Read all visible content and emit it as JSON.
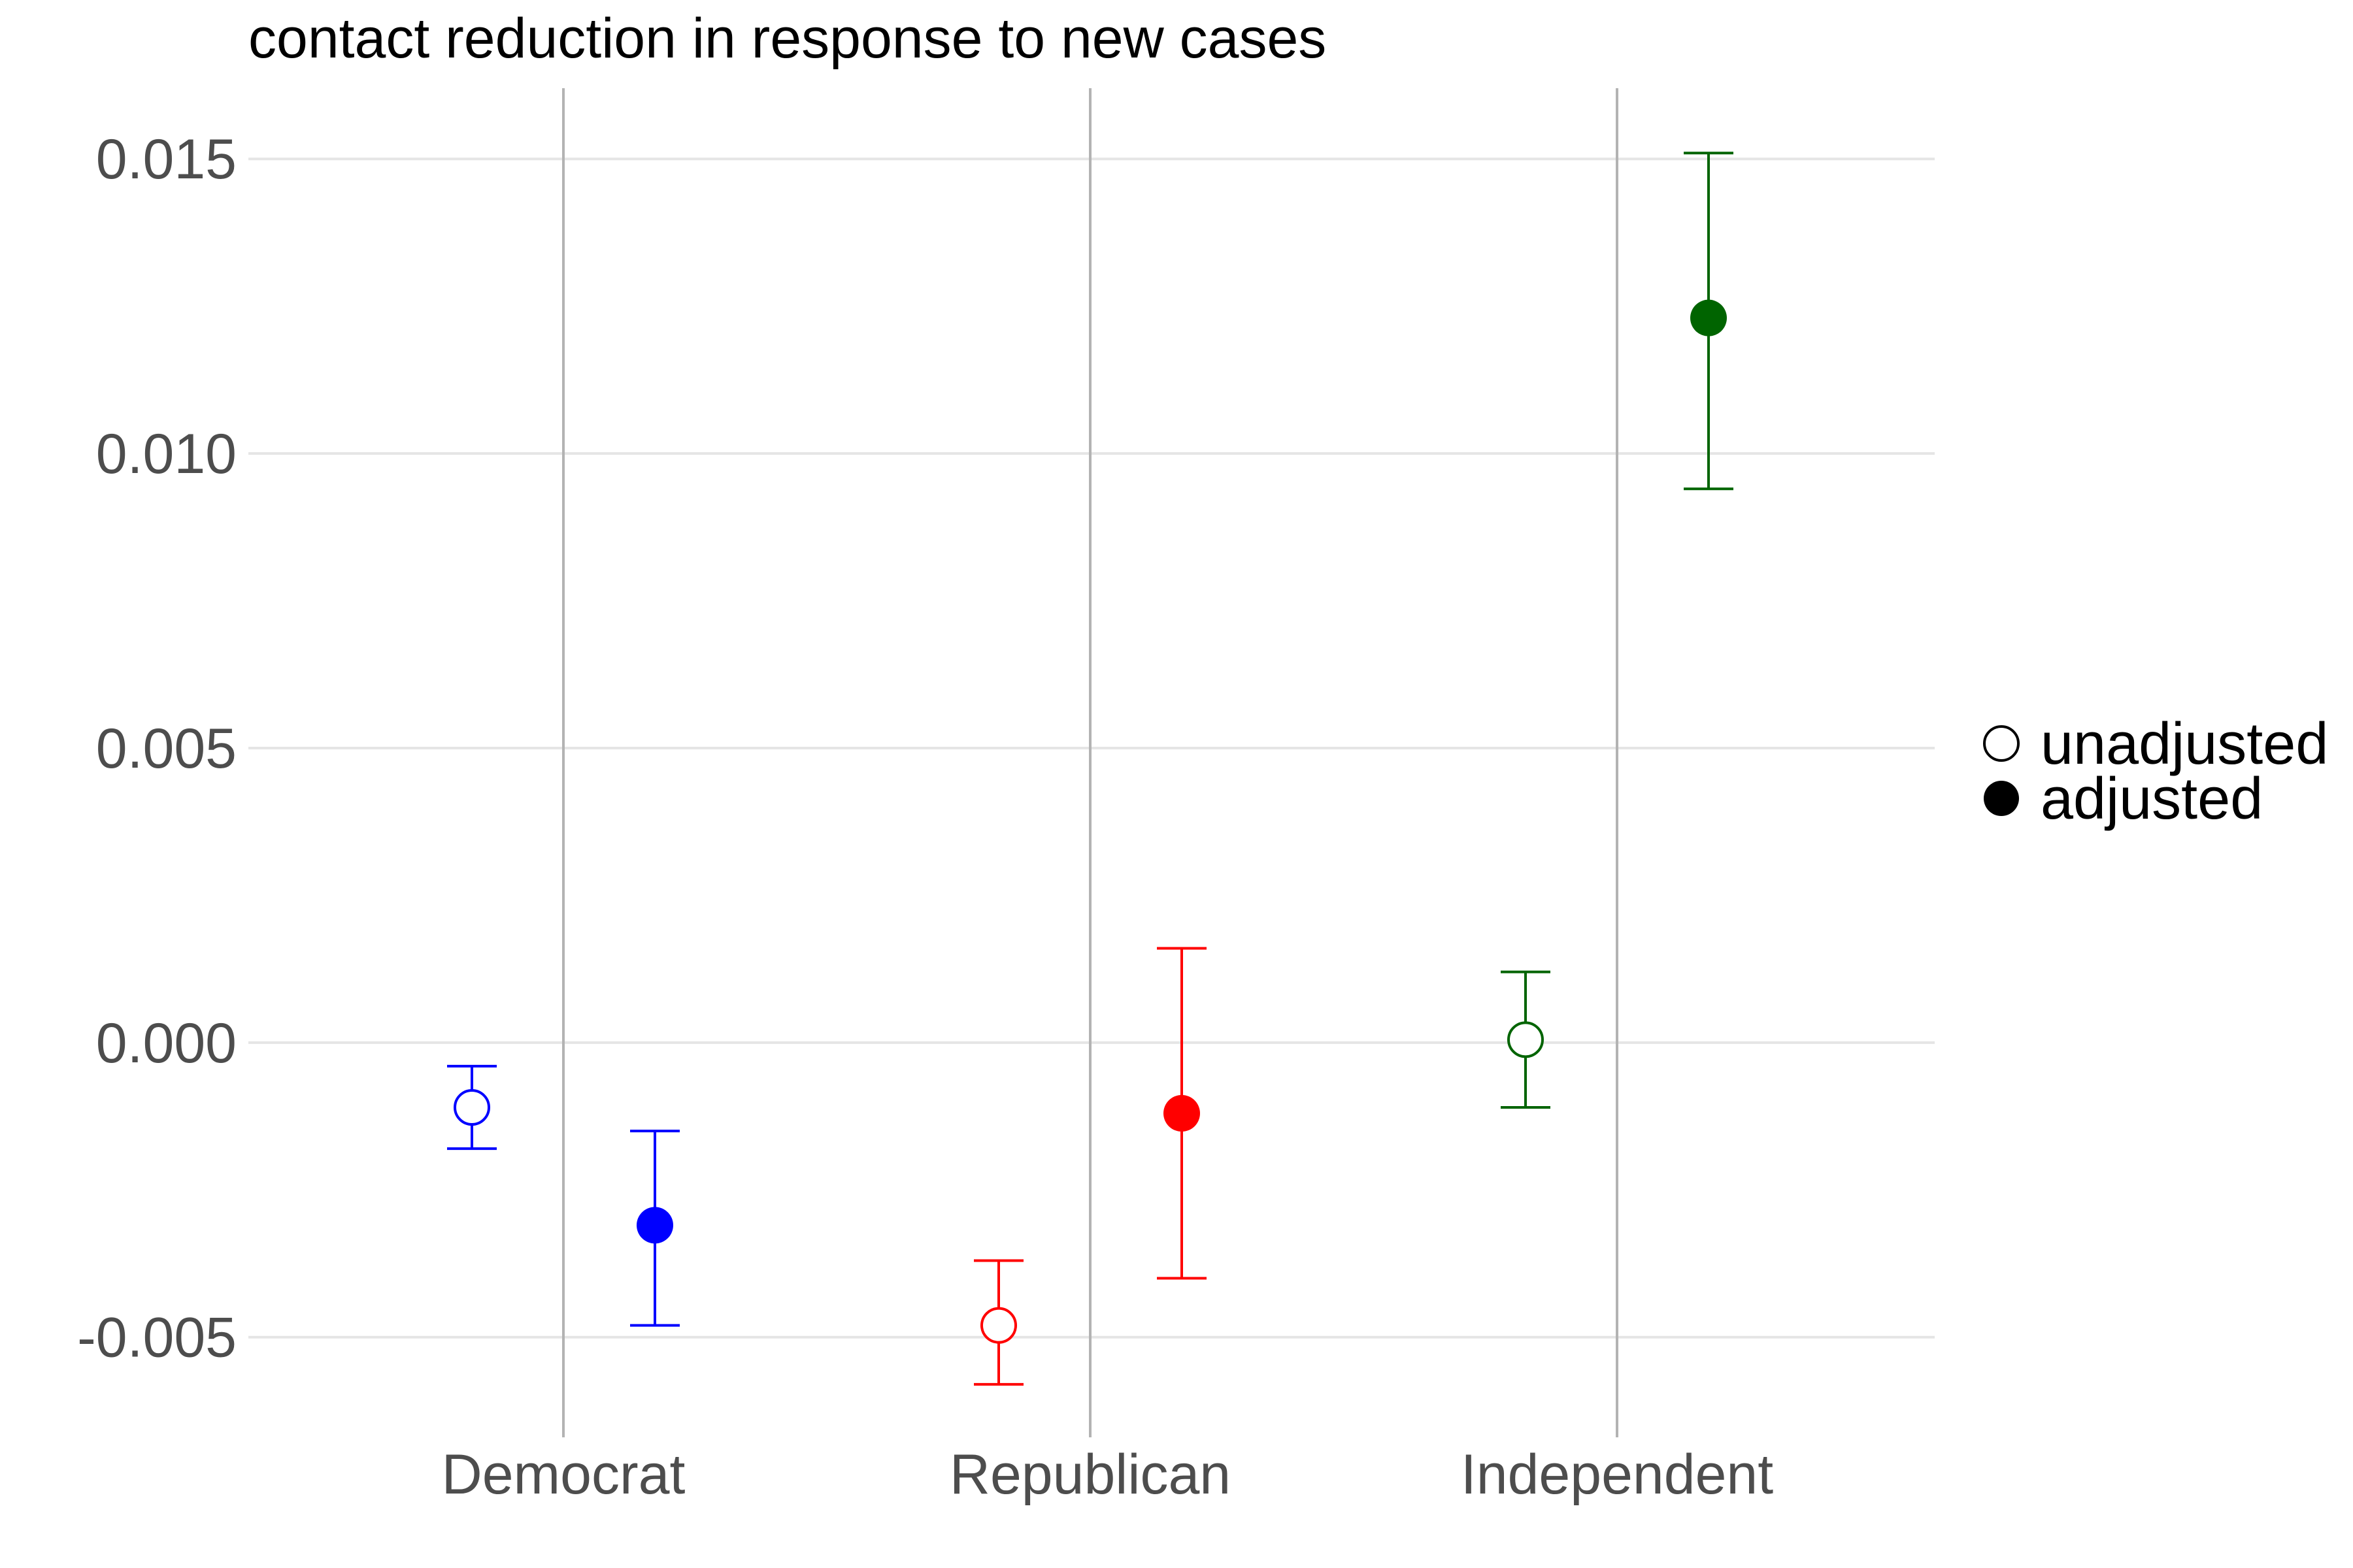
{
  "chart_data": {
    "type": "scatter",
    "title": "contact reduction in response to new cases",
    "xlabel": "",
    "ylabel": "",
    "categories": [
      "Democrat",
      "Republican",
      "Independent"
    ],
    "ylim": [
      -0.0067,
      0.0162
    ],
    "yticks": [
      -0.005,
      0.0,
      0.005,
      0.01,
      0.015
    ],
    "ytick_labels": [
      "-0.005",
      "0.000",
      "0.005",
      "0.010",
      "0.015"
    ],
    "grid": true,
    "legend_position": "right",
    "series": [
      {
        "name": "unadjusted",
        "marker": "open-circle",
        "points": [
          {
            "category": "Democrat",
            "value": -0.0011,
            "lower": -0.0018,
            "upper": -0.0004,
            "color": "#0000ff"
          },
          {
            "category": "Republican",
            "value": -0.0048,
            "lower": -0.0058,
            "upper": -0.0037,
            "color": "#ff0000"
          },
          {
            "category": "Independent",
            "value": 5e-05,
            "lower": -0.0011,
            "upper": 0.0012,
            "color": "#006400"
          }
        ]
      },
      {
        "name": "adjusted",
        "marker": "filled-circle",
        "points": [
          {
            "category": "Democrat",
            "value": -0.0031,
            "lower": -0.0048,
            "upper": -0.0015,
            "color": "#0000ff"
          },
          {
            "category": "Republican",
            "value": -0.0012,
            "lower": -0.004,
            "upper": 0.0016,
            "color": "#ff0000"
          },
          {
            "category": "Independent",
            "value": 0.0123,
            "lower": 0.0094,
            "upper": 0.0151,
            "color": "#006400"
          }
        ]
      }
    ],
    "colors": {
      "grid_horizontal": "#e5e5e5",
      "grid_vertical": "#b3b3b3"
    }
  }
}
